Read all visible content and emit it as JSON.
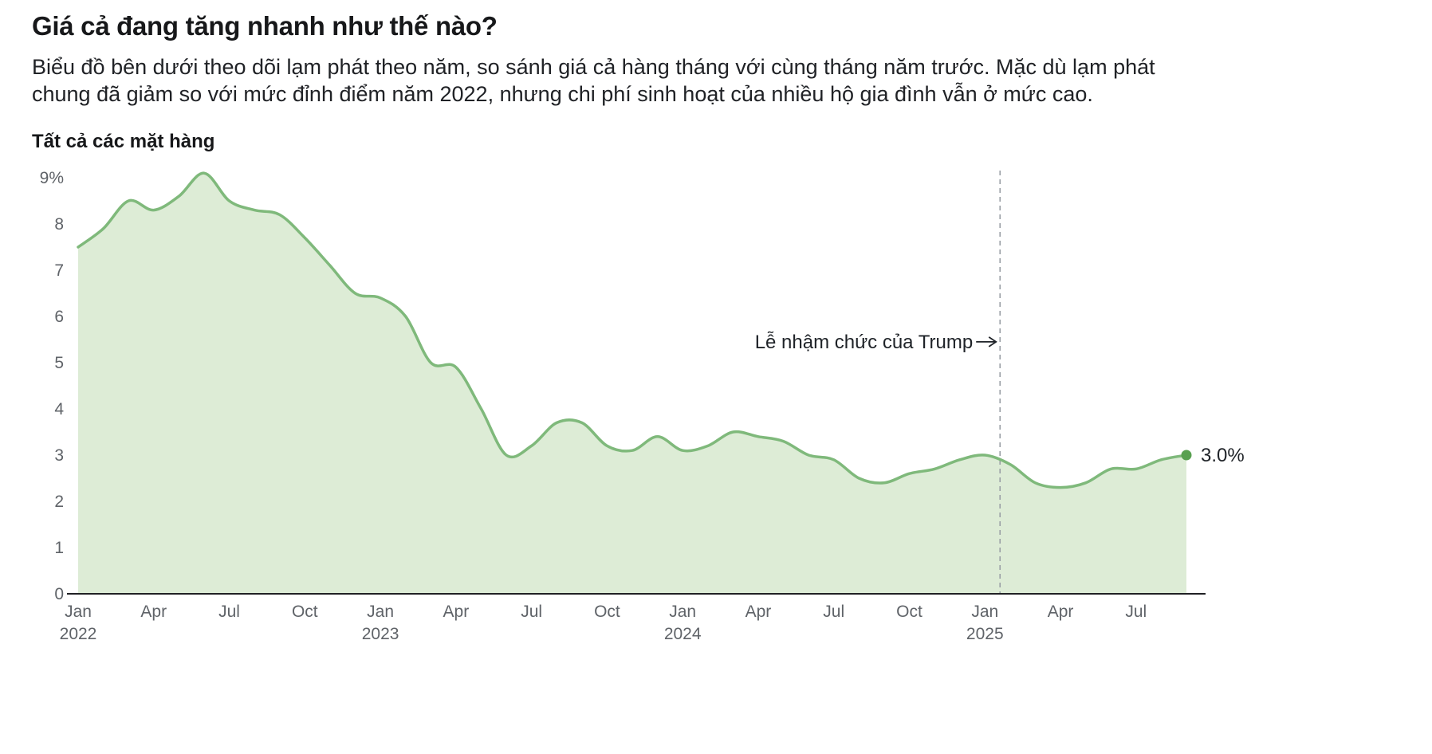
{
  "header": {
    "title": "Giá cả đang tăng nhanh như thế nào?",
    "subtitle": "Biểu đồ bên dưới theo dõi lạm phát theo năm, so sánh giá cả hàng tháng với cùng tháng năm trước. Mặc dù lạm phát chung đã giảm so với mức đỉnh điểm năm 2022, nhưng chi phí sinh hoạt của nhiều hộ gia đình vẫn ở mức cao."
  },
  "chart_data": {
    "type": "area",
    "title": "Tất cả các mặt hàng",
    "x": [
      "Jan 2022",
      "Feb 2022",
      "Mar 2022",
      "Apr 2022",
      "May 2022",
      "Jun 2022",
      "Jul 2022",
      "Aug 2022",
      "Sep 2022",
      "Oct 2022",
      "Nov 2022",
      "Dec 2022",
      "Jan 2023",
      "Feb 2023",
      "Mar 2023",
      "Apr 2023",
      "May 2023",
      "Jun 2023",
      "Jul 2023",
      "Aug 2023",
      "Sep 2023",
      "Oct 2023",
      "Nov 2023",
      "Dec 2023",
      "Jan 2024",
      "Feb 2024",
      "Mar 2024",
      "Apr 2024",
      "May 2024",
      "Jun 2024",
      "Jul 2024",
      "Aug 2024",
      "Sep 2024",
      "Oct 2024",
      "Nov 2024",
      "Dec 2024",
      "Jan 2025",
      "Feb 2025",
      "Mar 2025",
      "Apr 2025",
      "May 2025",
      "Jun 2025",
      "Jul 2025",
      "Aug 2025",
      "Sep 2025"
    ],
    "values": [
      7.5,
      7.9,
      8.5,
      8.3,
      8.6,
      9.1,
      8.5,
      8.3,
      8.2,
      7.7,
      7.1,
      6.5,
      6.4,
      6.0,
      5.0,
      4.9,
      4.0,
      3.0,
      3.2,
      3.7,
      3.7,
      3.2,
      3.1,
      3.4,
      3.1,
      3.2,
      3.5,
      3.4,
      3.3,
      3.0,
      2.9,
      2.5,
      2.4,
      2.6,
      2.7,
      2.9,
      3.0,
      2.8,
      2.4,
      2.3,
      2.4,
      2.7,
      2.7,
      2.9,
      3.0
    ],
    "ylim": [
      0,
      9
    ],
    "grid": false,
    "legend": false,
    "y_ticks": [
      {
        "value": 9,
        "label": "9%"
      },
      {
        "value": 8,
        "label": "8"
      },
      {
        "value": 7,
        "label": "7"
      },
      {
        "value": 6,
        "label": "6"
      },
      {
        "value": 5,
        "label": "5"
      },
      {
        "value": 4,
        "label": "4"
      },
      {
        "value": 3,
        "label": "3"
      },
      {
        "value": 2,
        "label": "2"
      },
      {
        "value": 1,
        "label": "1"
      },
      {
        "value": 0,
        "label": "0"
      }
    ],
    "x_ticks": [
      {
        "index": 0,
        "label": "Jan",
        "year": "2022"
      },
      {
        "index": 3,
        "label": "Apr"
      },
      {
        "index": 6,
        "label": "Jul"
      },
      {
        "index": 9,
        "label": "Oct"
      },
      {
        "index": 12,
        "label": "Jan",
        "year": "2023"
      },
      {
        "index": 15,
        "label": "Apr"
      },
      {
        "index": 18,
        "label": "Jul"
      },
      {
        "index": 21,
        "label": "Oct"
      },
      {
        "index": 24,
        "label": "Jan",
        "year": "2024"
      },
      {
        "index": 27,
        "label": "Apr"
      },
      {
        "index": 30,
        "label": "Jul"
      },
      {
        "index": 33,
        "label": "Oct"
      },
      {
        "index": 36,
        "label": "Jan",
        "year": "2025"
      },
      {
        "index": 39,
        "label": "Apr"
      },
      {
        "index": 42,
        "label": "Jul"
      }
    ],
    "annotation": {
      "text": "Lễ nhậm chức của Trump",
      "x_index": 36.6,
      "y_value": 5.45
    },
    "end_label": {
      "text": "3.0%",
      "value": 3.0
    },
    "colors": {
      "line": "#7fb97b",
      "fill": "#ddecd6",
      "dot": "#58a050",
      "axis_text": "#5f6368",
      "baseline": "#202124",
      "event_line": "#9aa0a6",
      "text": "#1f2328"
    }
  }
}
